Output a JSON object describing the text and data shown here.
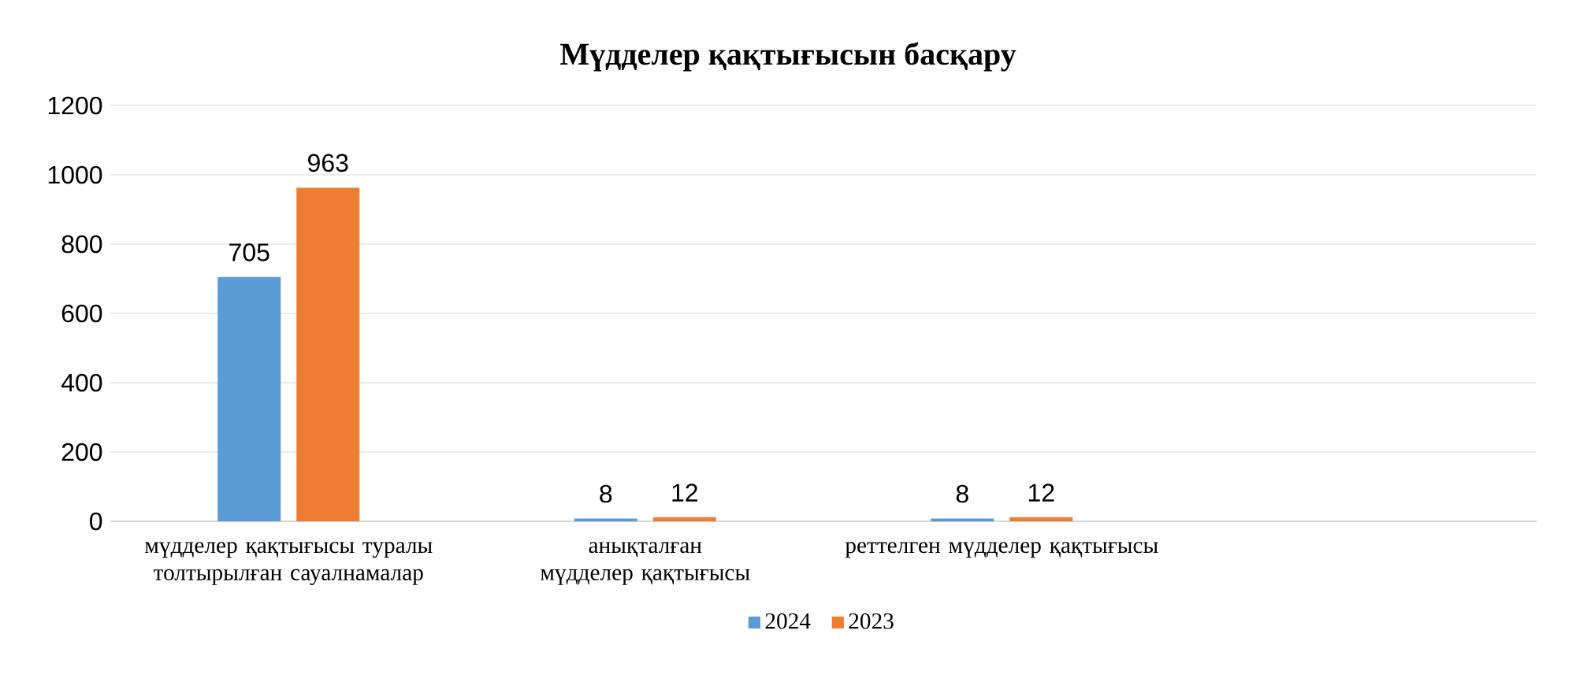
{
  "chart_data": {
    "type": "bar",
    "title": "Мүдделер қақтығысын басқару",
    "categories": [
      "мүдделер қақтығысы туралы толтырылған сауалнамалар",
      "анықталған мүдделер қақтығысы",
      "реттелген мүдделер қақтығысы",
      null
    ],
    "series": [
      {
        "name": "2024",
        "color": "#5b9bd5",
        "values": [
          705,
          8,
          8,
          null
        ]
      },
      {
        "name": "2023",
        "color": "#ed7d31",
        "values": [
          963,
          12,
          12,
          null
        ]
      }
    ],
    "ylim": [
      0,
      1200
    ],
    "yticks": [
      0,
      200,
      400,
      600,
      800,
      1000,
      1200
    ],
    "grid": "y",
    "legend": "bottom",
    "data_labels": true
  }
}
